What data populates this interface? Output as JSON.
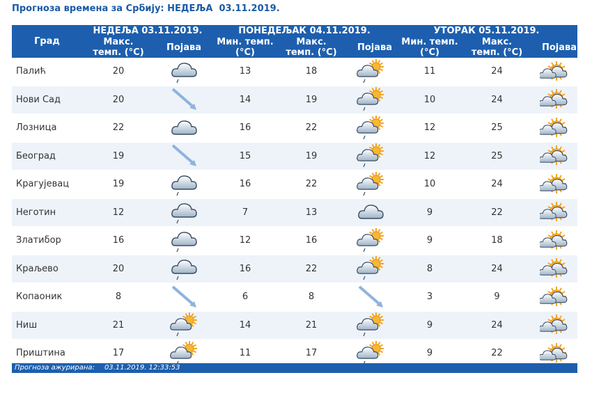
{
  "title": "Прогноза времена за Србију: НЕДЕЉА  03.11.2019.",
  "table": {
    "header": {
      "city": "Град",
      "days": [
        {
          "date": "НЕДЕЉА 03.11.2019.",
          "columns": [
            "Макс. темп. (°C)",
            "Појава"
          ]
        },
        {
          "date": "ПОНЕДЕЉАК 04.11.2019.",
          "columns": [
            "Мин. темп. (°C)",
            "Макс. темп. (°C)",
            "Појава"
          ]
        },
        {
          "date": "УТОРАК 05.11.2019.",
          "columns": [
            "Мин. темп. (°C)",
            "Макс. темп. (°C)",
            "Појава"
          ]
        }
      ]
    },
    "rows": [
      [
        "Палић",
        20,
        13,
        18,
        11,
        24
      ],
      [
        "Нови Сад",
        20,
        14,
        19,
        10,
        24
      ],
      [
        "Лозница",
        22,
        16,
        22,
        12,
        25
      ],
      [
        "Београд",
        19,
        15,
        19,
        12,
        25
      ],
      [
        "Крагујевац",
        19,
        16,
        22,
        10,
        24
      ],
      [
        "Неготин",
        12,
        7,
        13,
        9,
        22
      ],
      [
        "Златибор",
        16,
        12,
        16,
        9,
        18
      ],
      [
        "Краљево",
        20,
        16,
        22,
        8,
        24
      ],
      [
        "Копаоник",
        8,
        6,
        8,
        3,
        9
      ],
      [
        "Ниш",
        21,
        14,
        21,
        9,
        24
      ],
      [
        "Приштина",
        17,
        11,
        17,
        9,
        22
      ]
    ]
  },
  "footer": {
    "label": "Прогноза ажурирана:",
    "time": "03.11.2019. 12:33:53"
  }
}
